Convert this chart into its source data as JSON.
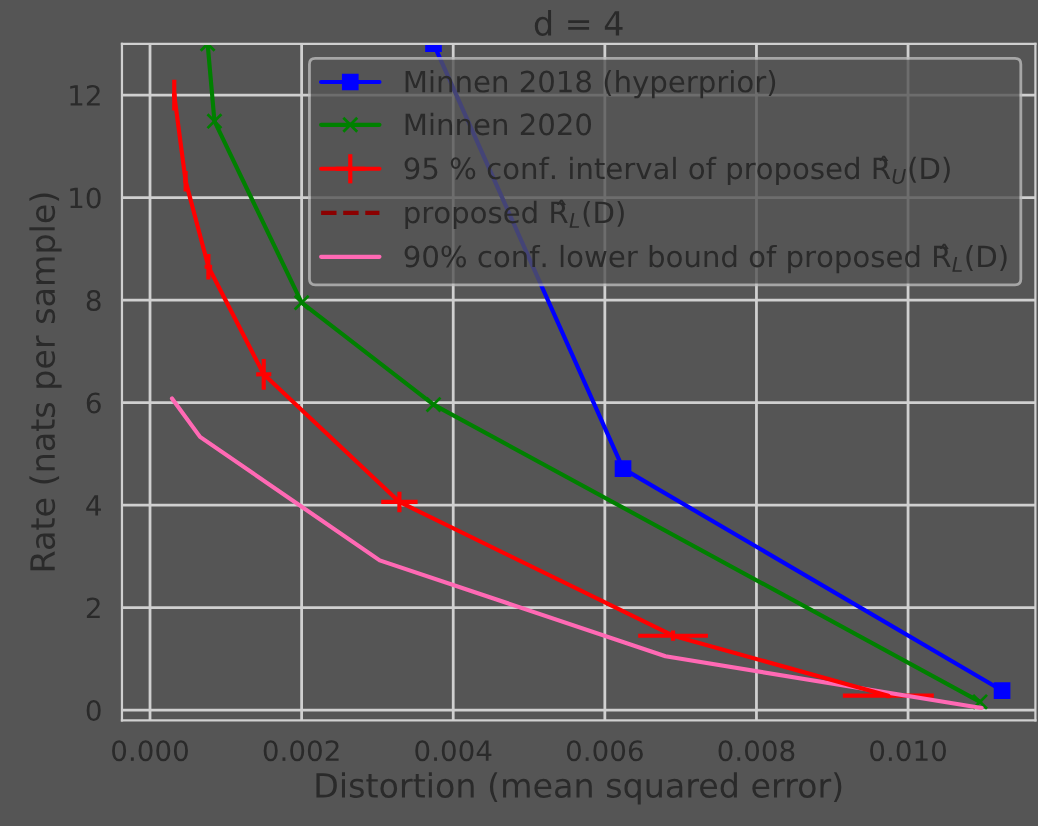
{
  "chart_data": {
    "type": "line",
    "title": "d = 4",
    "xlabel": "Distortion (mean squared error)",
    "ylabel": "Rate (nats per sample)",
    "xlim": [
      -0.00037,
      0.01168
    ],
    "ylim": [
      -0.2,
      13
    ],
    "xticks": [
      {
        "value": 0,
        "label": "0.000"
      },
      {
        "value": 0.002,
        "label": "0.002"
      },
      {
        "value": 0.004,
        "label": "0.004"
      },
      {
        "value": 0.006,
        "label": "0.006"
      },
      {
        "value": 0.008,
        "label": "0.008"
      },
      {
        "value": 0.01,
        "label": "0.010"
      }
    ],
    "yticks": [
      0,
      2,
      4,
      6,
      8,
      10,
      12
    ],
    "grid": true,
    "legend": "top right",
    "series": [
      {
        "name": "Minnen 2018 (hyperprior)",
        "color": "#0000ff",
        "marker": "square",
        "x": [
          0.00374,
          0.00624,
          0.01124
        ],
        "values": [
          13,
          4.71,
          0.38
        ]
      },
      {
        "name": "Minnen 2020",
        "color": "#008000",
        "marker": "cross",
        "x": [
          0.00076,
          0.00085,
          0.002,
          0.00374,
          0.01095
        ],
        "values": [
          13,
          11.49,
          7.95,
          5.96,
          0.16
        ]
      },
      {
        "name": "95 % conf. interval of proposed R̂$_{U}$(D)",
        "color": "#ff0000",
        "marker": "none",
        "x": [
          0.00032,
          0.00047,
          0.00077,
          0.0015,
          0.00329,
          0.0069,
          0.00974
        ],
        "values": [
          12.0,
          10.32,
          8.65,
          6.55,
          4.06,
          1.45,
          0.28
        ],
        "errors": [
          0.3,
          0.2,
          0.25,
          0.3,
          0.2,
          0.1,
          0.05
        ],
        "xerrors": [
          3e-05,
          3e-05,
          5e-05,
          0.0001,
          0.00024,
          0.00046,
          0.0006
        ]
      },
      {
        "name": "proposed R̂$_{L}$(D)",
        "color": "#8b0000",
        "line_style": "dashed"
      },
      {
        "name": "90% conf. lower bound of proposed R̂$_{L}$(D)",
        "color": "#ff69b4",
        "x": [
          0.00029,
          0.00066,
          0.00303,
          0.0068,
          0.01097
        ],
        "values": [
          6.08,
          5.33,
          2.92,
          1.05,
          0.04
        ]
      }
    ]
  }
}
